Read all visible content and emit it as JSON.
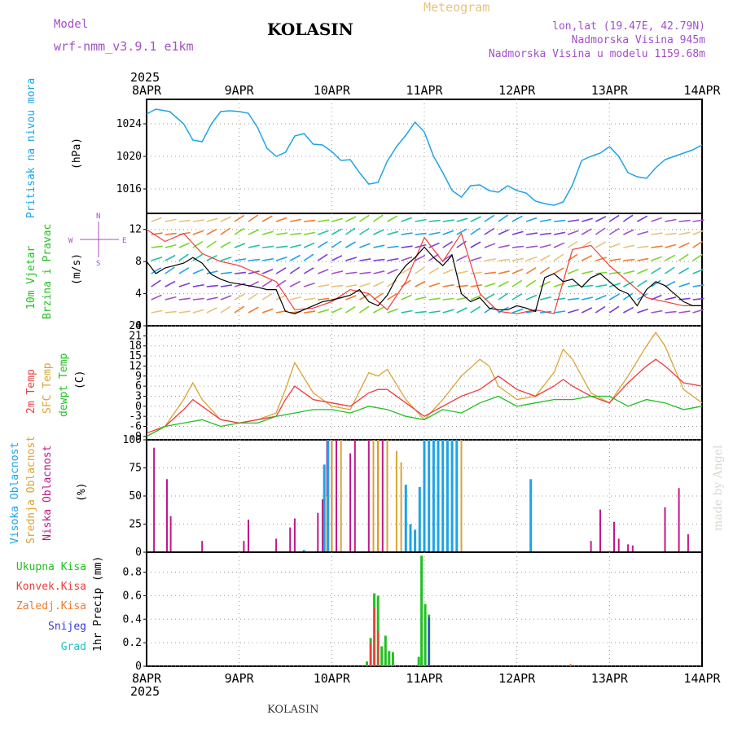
{
  "header": {
    "model_label": "Model",
    "model_name": "wrf-nmm_v3.9.1 e1km",
    "location": "KOLASIN",
    "meteogram_label": "Meteogram",
    "lonlat": "lon,lat (19.47E, 42.79N)",
    "altitude": "Nadmorska Visina 945m",
    "model_altitude": "Nadmorska Visina u modelu 1159.68m",
    "year_top": "2025",
    "year_bottom": "2025",
    "footer_location": "KOLASIN",
    "credit": "made by Angel"
  },
  "colors": {
    "pressure": "#1fa3e6",
    "temp2m": "#ef3b3b",
    "sfctemp": "#d9a534",
    "dewpt": "#21c021",
    "wind_speed": "#000000",
    "wind_gust": "#ef3b3b",
    "cloud_high": "#1fa3e6",
    "cloud_mid": "#d9a534",
    "cloud_low": "#c0188a",
    "rain_total": "#21c021",
    "rain_conv": "#ef3b3b",
    "rain_frozen": "#ef7b2b",
    "snow": "#3a3ad9",
    "hail": "#21c0c0"
  },
  "chart_data": [
    {
      "type": "line",
      "id": "pressure",
      "ylabel": "(hPa)",
      "side_label": "Pritisak na nivou mora",
      "x_ticks": [
        "8APR",
        "9APR",
        "10APR",
        "11APR",
        "12APR",
        "13APR",
        "14APR"
      ],
      "ylim": [
        1013,
        1027
      ],
      "y_ticks": [
        1016,
        1020,
        1024
      ],
      "series": [
        {
          "x": [
            0,
            0.1,
            0.25,
            0.4,
            0.5,
            0.6,
            0.7,
            0.8,
            0.9,
            1.0,
            1.1,
            1.2,
            1.3,
            1.4,
            1.5,
            1.6,
            1.7,
            1.8,
            1.9,
            2.0,
            2.1,
            2.2,
            2.3,
            2.4,
            2.5,
            2.6,
            2.7,
            2.8,
            2.9,
            3.0,
            3.1,
            3.2,
            3.3,
            3.4,
            3.5,
            3.6,
            3.7,
            3.8,
            3.9,
            4.0,
            4.1,
            4.2,
            4.3,
            4.4,
            4.5,
            4.6,
            4.7,
            4.8,
            4.9,
            5.0,
            5.1,
            5.2,
            5.3,
            5.4,
            5.5,
            5.6,
            5.7,
            5.8,
            5.9,
            6.0
          ],
          "values": [
            1025.2,
            1025.8,
            1025.5,
            1024.0,
            1022.0,
            1021.8,
            1024.0,
            1025.5,
            1025.6,
            1025.5,
            1025.3,
            1023.5,
            1021.0,
            1020.0,
            1020.5,
            1022.5,
            1022.8,
            1021.5,
            1021.4,
            1020.6,
            1019.5,
            1019.6,
            1018.0,
            1016.6,
            1016.8,
            1019.4,
            1021.2,
            1022.6,
            1024.2,
            1023.0,
            1020.0,
            1018.0,
            1015.8,
            1015.0,
            1016.4,
            1016.5,
            1015.8,
            1015.6,
            1016.4,
            1015.8,
            1015.5,
            1014.5,
            1014.2,
            1014.0,
            1014.4,
            1016.5,
            1019.5,
            1020.0,
            1020.4,
            1021.2,
            1020.0,
            1018.0,
            1017.5,
            1017.3,
            1018.6,
            1019.6,
            1020.0,
            1020.4,
            1020.8,
            1021.4
          ]
        }
      ]
    },
    {
      "type": "line",
      "id": "wind",
      "ylabel": "(m/s)",
      "side_label": "10m Vjetar Brzina i Pravac",
      "compass": {
        "n": "N",
        "s": "S",
        "w": "W",
        "e": "E"
      },
      "ylim": [
        0,
        14
      ],
      "y_ticks": [
        0,
        4,
        8,
        12
      ],
      "series": [
        {
          "name": "speed",
          "x": [
            0,
            0.1,
            0.2,
            0.3,
            0.4,
            0.5,
            0.6,
            0.7,
            0.8,
            0.9,
            1.0,
            1.1,
            1.2,
            1.3,
            1.4,
            1.5,
            1.6,
            1.7,
            1.8,
            1.9,
            2.0,
            2.1,
            2.2,
            2.3,
            2.4,
            2.5,
            2.6,
            2.7,
            2.8,
            2.9,
            3.0,
            3.1,
            3.2,
            3.3,
            3.4,
            3.5,
            3.6,
            3.7,
            3.8,
            3.9,
            4.0,
            4.1,
            4.2,
            4.3,
            4.4,
            4.5,
            4.6,
            4.7,
            4.8,
            4.9,
            5.0,
            5.1,
            5.2,
            5.3,
            5.4,
            5.5,
            5.6,
            5.7,
            5.8,
            5.9,
            6.0
          ],
          "values": [
            8.0,
            6.5,
            7.2,
            7.5,
            7.8,
            8.5,
            7.8,
            6.4,
            5.8,
            5.4,
            5.2,
            5.0,
            4.8,
            4.5,
            4.5,
            1.8,
            1.5,
            2.0,
            2.5,
            3.0,
            3.2,
            3.5,
            3.8,
            4.5,
            3.0,
            2.5,
            3.8,
            6.0,
            7.5,
            8.5,
            9.8,
            8.5,
            7.5,
            8.8,
            4.0,
            3.0,
            3.5,
            2.2,
            2.0,
            2.0,
            2.5,
            2.2,
            1.8,
            6.0,
            6.5,
            5.5,
            5.8,
            4.8,
            6.0,
            6.5,
            5.5,
            4.5,
            4.0,
            2.5,
            4.5,
            5.5,
            5.0,
            4.0,
            3.0,
            2.5,
            2.5
          ]
        },
        {
          "name": "gust",
          "x": [
            0,
            0.2,
            0.4,
            0.6,
            0.8,
            1.0,
            1.2,
            1.4,
            1.6,
            1.8,
            2.0,
            2.2,
            2.4,
            2.6,
            2.8,
            3.0,
            3.2,
            3.4,
            3.6,
            3.8,
            4.0,
            4.2,
            4.4,
            4.6,
            4.8,
            5.0,
            5.2,
            5.4,
            5.6,
            5.8,
            6.0
          ],
          "values": [
            12.0,
            10.5,
            11.5,
            9.0,
            8.0,
            7.5,
            6.5,
            5.5,
            2.0,
            2.2,
            3.0,
            4.5,
            4.0,
            2.0,
            5.5,
            11.0,
            8.0,
            11.5,
            4.0,
            1.8,
            1.5,
            2.0,
            1.5,
            9.5,
            10.0,
            7.5,
            5.5,
            3.5,
            3.0,
            2.5,
            2.5
          ]
        }
      ]
    },
    {
      "type": "line",
      "id": "temperature",
      "ylabel": "(C)",
      "side_labels": [
        "2m Temp",
        "SFC Temp",
        "dewpt Temp"
      ],
      "ylim": [
        -10,
        24
      ],
      "y_ticks": [
        -9,
        -6,
        -3,
        0,
        3,
        6,
        9,
        12,
        15,
        18,
        21,
        24
      ],
      "series": [
        {
          "name": "2m Temp",
          "x": [
            0,
            0.2,
            0.4,
            0.5,
            0.6,
            0.8,
            1.0,
            1.2,
            1.4,
            1.5,
            1.6,
            1.8,
            2.0,
            2.2,
            2.4,
            2.5,
            2.6,
            2.8,
            3.0,
            3.2,
            3.4,
            3.6,
            3.8,
            4.0,
            4.2,
            4.4,
            4.5,
            4.6,
            4.8,
            5.0,
            5.2,
            5.4,
            5.5,
            5.6,
            5.8,
            6.0
          ],
          "values": [
            -8,
            -6,
            -1,
            2,
            0,
            -4,
            -5,
            -4,
            -3,
            2,
            6,
            2,
            1,
            0,
            4,
            5,
            5,
            1,
            -3,
            0,
            3,
            5,
            9,
            5,
            3,
            6,
            8,
            6,
            3,
            1,
            7,
            12,
            14,
            12,
            7,
            6
          ]
        },
        {
          "name": "SFC Temp",
          "x": [
            0,
            0.2,
            0.4,
            0.5,
            0.6,
            0.8,
            1.0,
            1.2,
            1.4,
            1.5,
            1.6,
            1.8,
            2.0,
            2.2,
            2.4,
            2.5,
            2.6,
            2.8,
            3.0,
            3.2,
            3.4,
            3.6,
            3.7,
            3.8,
            4.0,
            4.2,
            4.4,
            4.5,
            4.6,
            4.8,
            5.0,
            5.2,
            5.4,
            5.5,
            5.6,
            5.8,
            6.0
          ],
          "values": [
            -9,
            -6,
            2,
            7,
            2,
            -4,
            -5,
            -4,
            -2,
            5,
            13,
            4,
            0,
            -1,
            10,
            9,
            11,
            2,
            -4,
            2,
            9,
            14,
            12,
            6,
            2,
            3,
            10,
            17,
            14,
            4,
            1,
            9,
            18,
            22,
            18,
            5,
            1
          ]
        },
        {
          "name": "dewpt Temp",
          "x": [
            0,
            0.2,
            0.4,
            0.6,
            0.8,
            1.0,
            1.2,
            1.4,
            1.6,
            1.8,
            2.0,
            2.2,
            2.4,
            2.6,
            2.8,
            3.0,
            3.2,
            3.4,
            3.6,
            3.8,
            4.0,
            4.2,
            4.4,
            4.6,
            4.8,
            5.0,
            5.2,
            5.4,
            5.6,
            5.8,
            6.0
          ],
          "values": [
            -9,
            -6,
            -5,
            -4,
            -6,
            -5,
            -5,
            -3,
            -2,
            -1,
            -1,
            -2,
            0,
            -1,
            -3,
            -4,
            -1,
            -2,
            1,
            3,
            0,
            1,
            2,
            2,
            3,
            3,
            0,
            2,
            1,
            -1,
            0
          ]
        }
      ]
    },
    {
      "type": "bar",
      "id": "clouds",
      "ylabel": "(%)",
      "side_labels": [
        "Visoka Oblacnost",
        "Srednja Oblacnost",
        "Niska Oblacnost"
      ],
      "ylim": [
        0,
        100
      ],
      "y_ticks": [
        0,
        25,
        50,
        75,
        100
      ],
      "series": [
        {
          "name": "Niska Oblacnost",
          "x": [
            0.08,
            0.22,
            0.26,
            0.6,
            1.05,
            1.1,
            1.4,
            1.55,
            1.6,
            1.85,
            1.9,
            1.95,
            2.0,
            2.05,
            2.2,
            2.25,
            2.4,
            2.45,
            2.5,
            2.55,
            2.6,
            4.8,
            4.9,
            5.05,
            5.1,
            5.2,
            5.25,
            5.6,
            5.75,
            5.85
          ],
          "values": [
            93,
            65,
            32,
            10,
            10,
            29,
            12,
            22,
            30,
            35,
            47,
            100,
            100,
            100,
            88,
            100,
            100,
            100,
            100,
            100,
            100,
            10,
            38,
            27,
            12,
            7,
            6,
            40,
            57,
            16
          ]
        },
        {
          "name": "Srednja Oblacnost",
          "x": [
            1.95,
            2.0,
            2.1,
            2.45,
            2.5,
            2.6,
            2.7,
            2.75,
            3.0,
            3.1,
            3.2,
            3.3,
            3.4,
            4.15
          ],
          "values": [
            50,
            100,
            100,
            100,
            100,
            100,
            90,
            80,
            50,
            90,
            100,
            100,
            100,
            20
          ]
        },
        {
          "name": "Visoka Oblacnost",
          "x": [
            1.7,
            1.92,
            1.96,
            2.8,
            2.85,
            2.9,
            2.95,
            3.0,
            3.05,
            3.1,
            3.15,
            3.2,
            3.25,
            3.3,
            3.35,
            4.15
          ],
          "values": [
            2,
            78,
            100,
            60,
            25,
            20,
            58,
            100,
            100,
            100,
            100,
            100,
            100,
            100,
            100,
            65
          ]
        }
      ]
    },
    {
      "type": "bar",
      "id": "precip",
      "ylabel": "1hr Precip (mm)",
      "side_labels": [
        "Ukupna Kisa",
        "Konvek.Kisa",
        "Zaledj.Kisa",
        "Snijeg",
        "Grad"
      ],
      "ylim": [
        0,
        0.97
      ],
      "y_ticks": [
        0,
        0.2,
        0.4,
        0.6,
        0.8
      ],
      "y_tick_labels": [
        "0",
        "0.2",
        "0.4",
        "0.6",
        "0.8"
      ],
      "x_ticks": [
        "8APR",
        "9APR",
        "10APR",
        "11APR",
        "12APR",
        "13APR",
        "14APR"
      ],
      "series": [
        {
          "name": "Ukupna Kisa",
          "x": [
            2.38,
            2.42,
            2.46,
            2.5,
            2.54,
            2.58,
            2.62,
            2.66,
            2.94,
            2.97,
            3.01,
            3.05
          ],
          "values": [
            0.04,
            0.24,
            0.62,
            0.6,
            0.17,
            0.26,
            0.13,
            0.12,
            0.08,
            0.94,
            0.53,
            0.44
          ]
        },
        {
          "name": "Konvek.Kisa",
          "x": [
            2.42,
            2.46,
            2.5
          ],
          "values": [
            0.2,
            0.5,
            0.3
          ]
        },
        {
          "name": "Snijeg",
          "x": [
            3.05
          ],
          "values": [
            0.42
          ]
        },
        {
          "name": "Zaledj.Kisa",
          "x": [
            4.58
          ],
          "values": [
            0.02
          ]
        }
      ]
    }
  ]
}
